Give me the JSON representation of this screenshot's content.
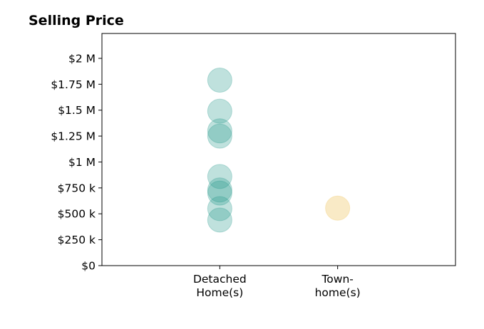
{
  "chart_data": {
    "type": "scatter",
    "title": "Selling Price",
    "xlabel": "",
    "ylabel": "",
    "categories": [
      [
        "Detached",
        "Home(s)"
      ],
      [
        "Town-",
        "home(s)"
      ]
    ],
    "xlim": [
      -1,
      2
    ],
    "ylim": [
      0,
      2240000
    ],
    "grid": false,
    "y_ticks": [
      {
        "value": 0,
        "label": "$0"
      },
      {
        "value": 250000,
        "label": "$250 k"
      },
      {
        "value": 500000,
        "label": "$500 k"
      },
      {
        "value": 750000,
        "label": "$750 k"
      },
      {
        "value": 1000000,
        "label": "$1 M"
      },
      {
        "value": 1250000,
        "label": "$1.25 M"
      },
      {
        "value": 1500000,
        "label": "$1.5 M"
      },
      {
        "value": 1750000,
        "label": "$1.75 M"
      },
      {
        "value": 2000000,
        "label": "$2 M"
      }
    ],
    "series": [
      {
        "category_index": 0,
        "color": "#2a9d8f",
        "opacity": 0.3,
        "values": [
          1790000,
          1490000,
          1300000,
          1250000,
          860000,
          730000,
          700000,
          550000,
          440000
        ]
      },
      {
        "category_index": 1,
        "color": "#f4d58d",
        "opacity": 0.5,
        "values": [
          555000
        ]
      }
    ]
  }
}
